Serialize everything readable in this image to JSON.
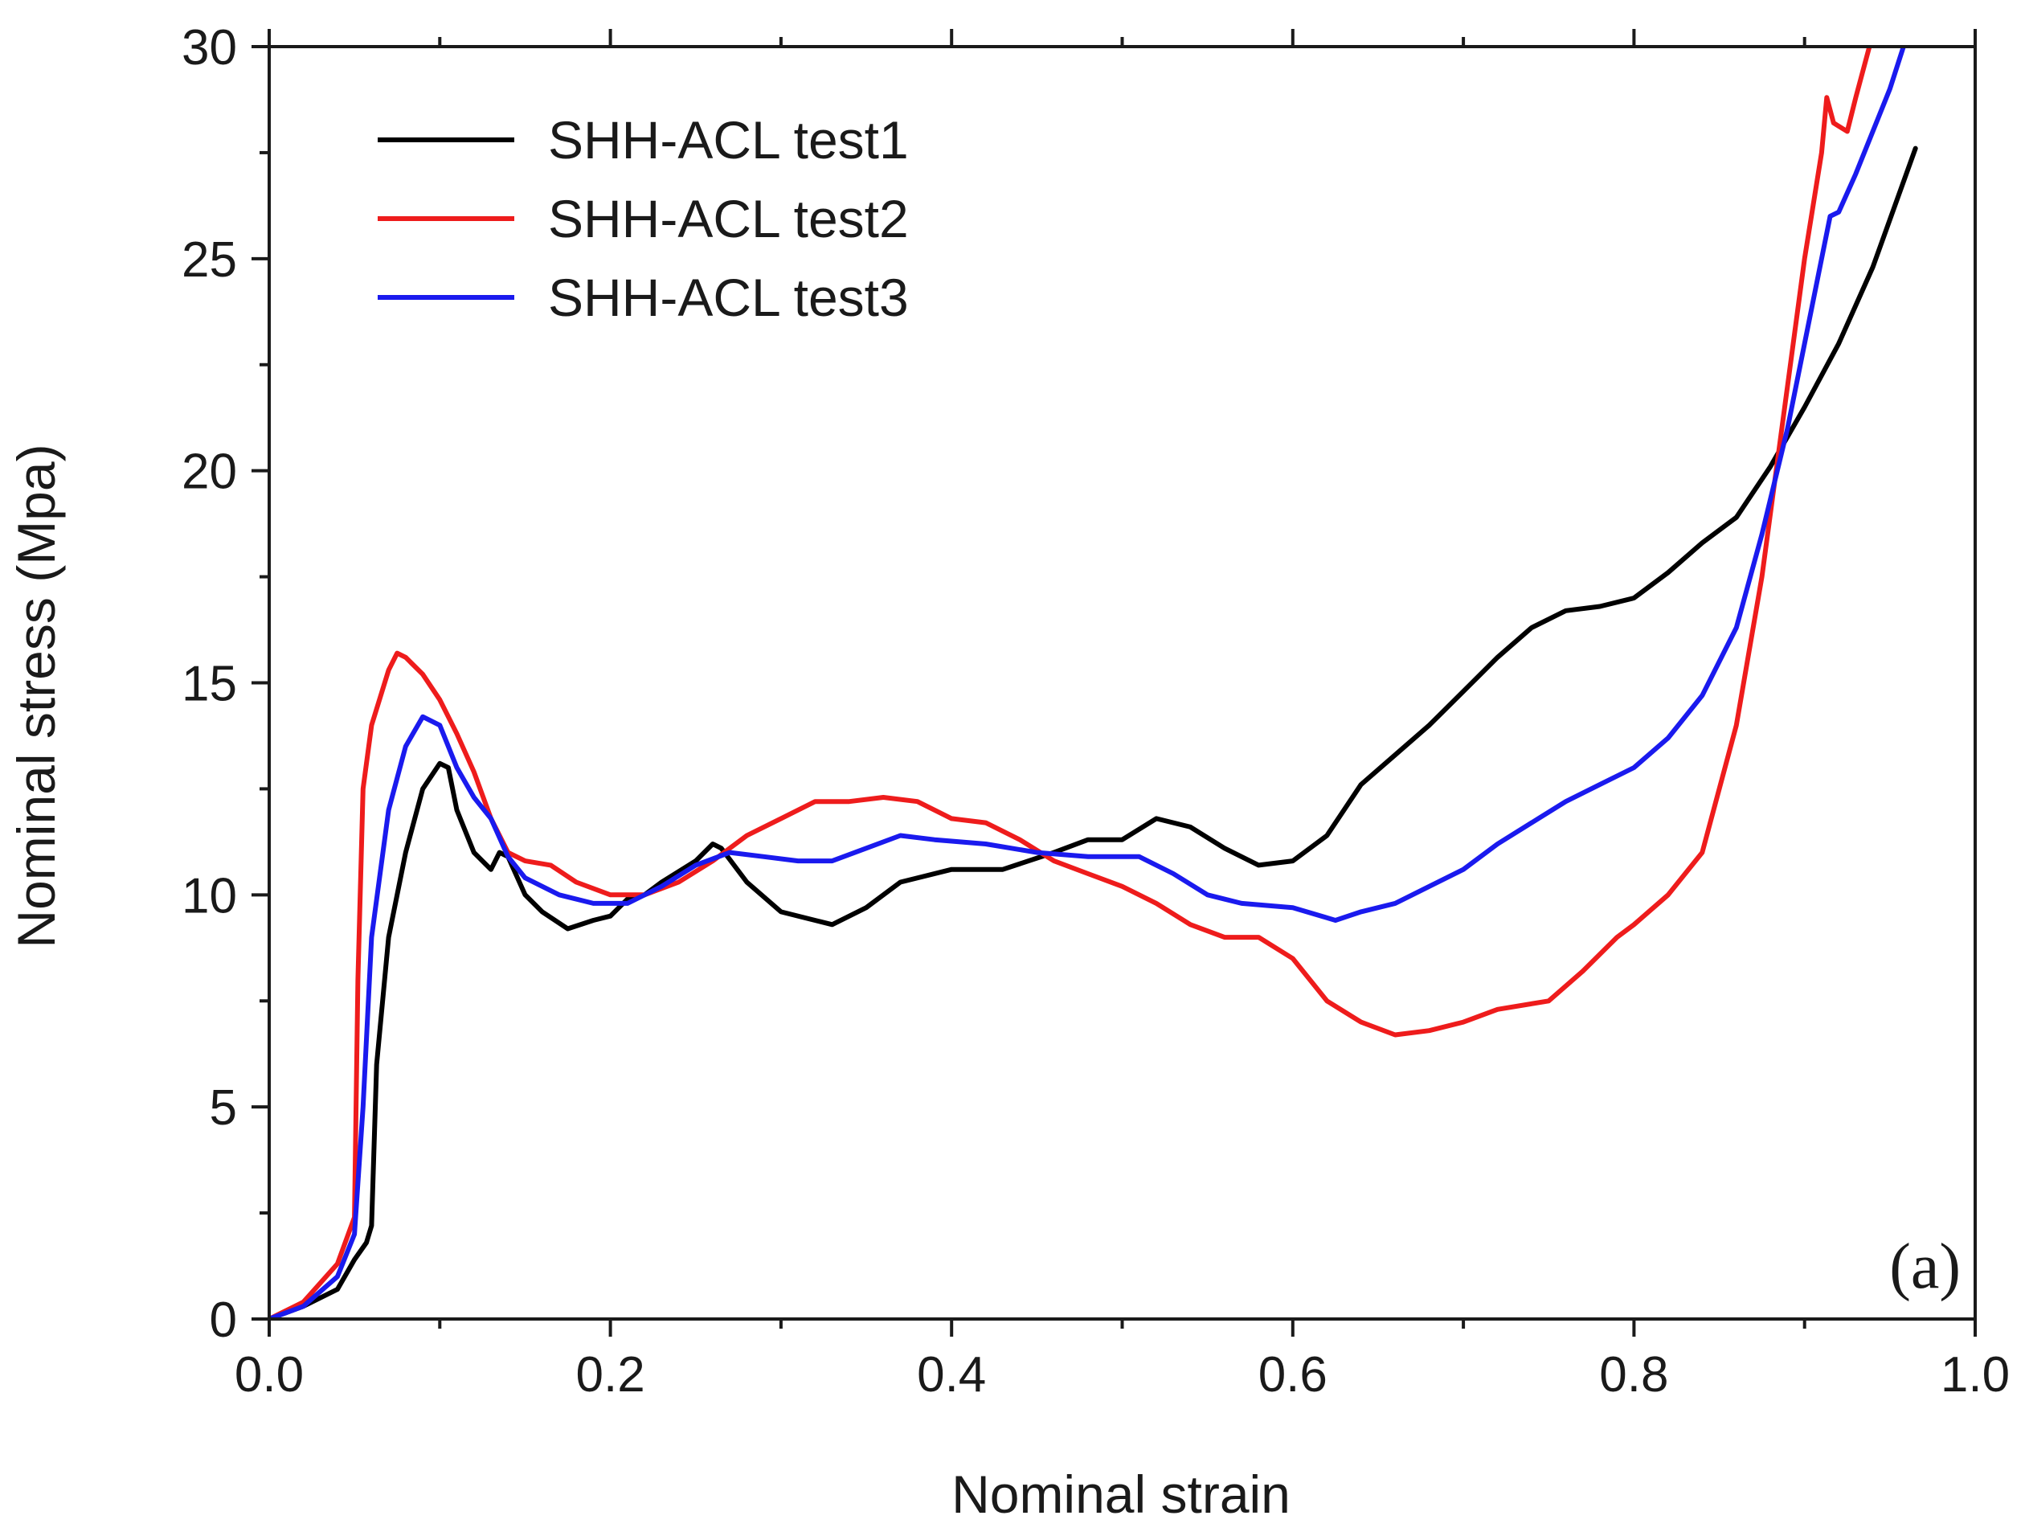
{
  "chart_data": {
    "type": "line",
    "title": "",
    "xlabel": "Nominal strain",
    "ylabel": "Nominal stress (Mpa)",
    "panel_label": "(a)",
    "xlim": [
      0.0,
      1.0
    ],
    "ylim": [
      0,
      30
    ],
    "x_ticks": [
      0.0,
      0.2,
      0.4,
      0.6,
      0.8,
      1.0
    ],
    "x_tick_labels": [
      "0.0",
      "0.2",
      "0.4",
      "0.6",
      "0.8",
      "1.0"
    ],
    "y_ticks": [
      0,
      5,
      10,
      15,
      20,
      25,
      30
    ],
    "y_tick_labels": [
      "0",
      "5",
      "10",
      "15",
      "20",
      "25",
      "30"
    ],
    "x_minor_step": 0.1,
    "y_minor_step": 2.5,
    "grid": false,
    "legend_position": "top-left",
    "series": [
      {
        "name": "SHH-ACL test1",
        "color": "#000000",
        "points": [
          [
            0.0,
            0.0
          ],
          [
            0.02,
            0.3
          ],
          [
            0.04,
            0.7
          ],
          [
            0.05,
            1.4
          ],
          [
            0.057,
            1.8
          ],
          [
            0.06,
            2.2
          ],
          [
            0.063,
            6.0
          ],
          [
            0.07,
            9.0
          ],
          [
            0.08,
            11.0
          ],
          [
            0.09,
            12.5
          ],
          [
            0.1,
            13.1
          ],
          [
            0.105,
            13.0
          ],
          [
            0.11,
            12.0
          ],
          [
            0.12,
            11.0
          ],
          [
            0.13,
            10.6
          ],
          [
            0.135,
            11.0
          ],
          [
            0.14,
            10.9
          ],
          [
            0.15,
            10.0
          ],
          [
            0.16,
            9.6
          ],
          [
            0.175,
            9.2
          ],
          [
            0.19,
            9.4
          ],
          [
            0.2,
            9.5
          ],
          [
            0.21,
            9.9
          ],
          [
            0.22,
            10.0
          ],
          [
            0.23,
            10.3
          ],
          [
            0.25,
            10.8
          ],
          [
            0.26,
            11.2
          ],
          [
            0.265,
            11.1
          ],
          [
            0.28,
            10.3
          ],
          [
            0.3,
            9.6
          ],
          [
            0.33,
            9.3
          ],
          [
            0.35,
            9.7
          ],
          [
            0.37,
            10.3
          ],
          [
            0.4,
            10.6
          ],
          [
            0.43,
            10.6
          ],
          [
            0.46,
            11.0
          ],
          [
            0.48,
            11.3
          ],
          [
            0.5,
            11.3
          ],
          [
            0.52,
            11.8
          ],
          [
            0.54,
            11.6
          ],
          [
            0.56,
            11.1
          ],
          [
            0.58,
            10.7
          ],
          [
            0.6,
            10.8
          ],
          [
            0.62,
            11.4
          ],
          [
            0.64,
            12.6
          ],
          [
            0.66,
            13.3
          ],
          [
            0.68,
            14.0
          ],
          [
            0.7,
            14.8
          ],
          [
            0.72,
            15.6
          ],
          [
            0.74,
            16.3
          ],
          [
            0.76,
            16.7
          ],
          [
            0.78,
            16.8
          ],
          [
            0.8,
            17.0
          ],
          [
            0.82,
            17.6
          ],
          [
            0.84,
            18.3
          ],
          [
            0.86,
            18.9
          ],
          [
            0.88,
            20.1
          ],
          [
            0.9,
            21.5
          ],
          [
            0.92,
            23.0
          ],
          [
            0.94,
            24.8
          ],
          [
            0.965,
            27.6
          ]
        ]
      },
      {
        "name": "SHH-ACL test2",
        "color": "#ee1c1c",
        "points": [
          [
            0.0,
            0.0
          ],
          [
            0.02,
            0.4
          ],
          [
            0.04,
            1.3
          ],
          [
            0.05,
            2.4
          ],
          [
            0.052,
            8.0
          ],
          [
            0.055,
            12.5
          ],
          [
            0.06,
            14.0
          ],
          [
            0.07,
            15.3
          ],
          [
            0.075,
            15.7
          ],
          [
            0.08,
            15.6
          ],
          [
            0.09,
            15.2
          ],
          [
            0.1,
            14.6
          ],
          [
            0.11,
            13.8
          ],
          [
            0.12,
            12.9
          ],
          [
            0.13,
            11.8
          ],
          [
            0.14,
            11.0
          ],
          [
            0.15,
            10.8
          ],
          [
            0.165,
            10.7
          ],
          [
            0.18,
            10.3
          ],
          [
            0.2,
            10.0
          ],
          [
            0.22,
            10.0
          ],
          [
            0.24,
            10.3
          ],
          [
            0.26,
            10.8
          ],
          [
            0.28,
            11.4
          ],
          [
            0.3,
            11.8
          ],
          [
            0.32,
            12.2
          ],
          [
            0.34,
            12.2
          ],
          [
            0.36,
            12.3
          ],
          [
            0.38,
            12.2
          ],
          [
            0.4,
            11.8
          ],
          [
            0.42,
            11.7
          ],
          [
            0.44,
            11.3
          ],
          [
            0.46,
            10.8
          ],
          [
            0.48,
            10.5
          ],
          [
            0.5,
            10.2
          ],
          [
            0.52,
            9.8
          ],
          [
            0.54,
            9.3
          ],
          [
            0.56,
            9.0
          ],
          [
            0.58,
            9.0
          ],
          [
            0.6,
            8.5
          ],
          [
            0.62,
            7.5
          ],
          [
            0.64,
            7.0
          ],
          [
            0.66,
            6.7
          ],
          [
            0.68,
            6.8
          ],
          [
            0.7,
            7.0
          ],
          [
            0.72,
            7.3
          ],
          [
            0.75,
            7.5
          ],
          [
            0.77,
            8.2
          ],
          [
            0.79,
            9.0
          ],
          [
            0.8,
            9.3
          ],
          [
            0.82,
            10.0
          ],
          [
            0.84,
            11.0
          ],
          [
            0.86,
            14.0
          ],
          [
            0.875,
            17.5
          ],
          [
            0.89,
            22.0
          ],
          [
            0.9,
            25.0
          ],
          [
            0.91,
            27.5
          ],
          [
            0.913,
            28.8
          ],
          [
            0.917,
            28.2
          ],
          [
            0.925,
            28.0
          ],
          [
            0.93,
            28.8
          ],
          [
            0.938,
            30.0
          ]
        ]
      },
      {
        "name": "SHH-ACL test3",
        "color": "#1a1aee",
        "points": [
          [
            0.0,
            0.0
          ],
          [
            0.02,
            0.3
          ],
          [
            0.04,
            1.0
          ],
          [
            0.05,
            2.0
          ],
          [
            0.055,
            5.0
          ],
          [
            0.06,
            9.0
          ],
          [
            0.07,
            12.0
          ],
          [
            0.08,
            13.5
          ],
          [
            0.09,
            14.2
          ],
          [
            0.1,
            14.0
          ],
          [
            0.11,
            13.0
          ],
          [
            0.12,
            12.3
          ],
          [
            0.13,
            11.8
          ],
          [
            0.14,
            10.9
          ],
          [
            0.15,
            10.4
          ],
          [
            0.17,
            10.0
          ],
          [
            0.19,
            9.8
          ],
          [
            0.21,
            9.8
          ],
          [
            0.23,
            10.2
          ],
          [
            0.25,
            10.7
          ],
          [
            0.27,
            11.0
          ],
          [
            0.29,
            10.9
          ],
          [
            0.31,
            10.8
          ],
          [
            0.33,
            10.8
          ],
          [
            0.35,
            11.1
          ],
          [
            0.37,
            11.4
          ],
          [
            0.39,
            11.3
          ],
          [
            0.42,
            11.2
          ],
          [
            0.45,
            11.0
          ],
          [
            0.48,
            10.9
          ],
          [
            0.51,
            10.9
          ],
          [
            0.53,
            10.5
          ],
          [
            0.55,
            10.0
          ],
          [
            0.57,
            9.8
          ],
          [
            0.6,
            9.7
          ],
          [
            0.625,
            9.4
          ],
          [
            0.64,
            9.6
          ],
          [
            0.66,
            9.8
          ],
          [
            0.68,
            10.2
          ],
          [
            0.7,
            10.6
          ],
          [
            0.72,
            11.2
          ],
          [
            0.74,
            11.7
          ],
          [
            0.76,
            12.2
          ],
          [
            0.78,
            12.6
          ],
          [
            0.8,
            13.0
          ],
          [
            0.82,
            13.7
          ],
          [
            0.84,
            14.7
          ],
          [
            0.86,
            16.3
          ],
          [
            0.875,
            18.5
          ],
          [
            0.89,
            21.0
          ],
          [
            0.9,
            23.0
          ],
          [
            0.91,
            25.0
          ],
          [
            0.915,
            26.0
          ],
          [
            0.92,
            26.1
          ],
          [
            0.93,
            27.0
          ],
          [
            0.95,
            29.0
          ],
          [
            0.958,
            30.0
          ]
        ]
      }
    ]
  }
}
